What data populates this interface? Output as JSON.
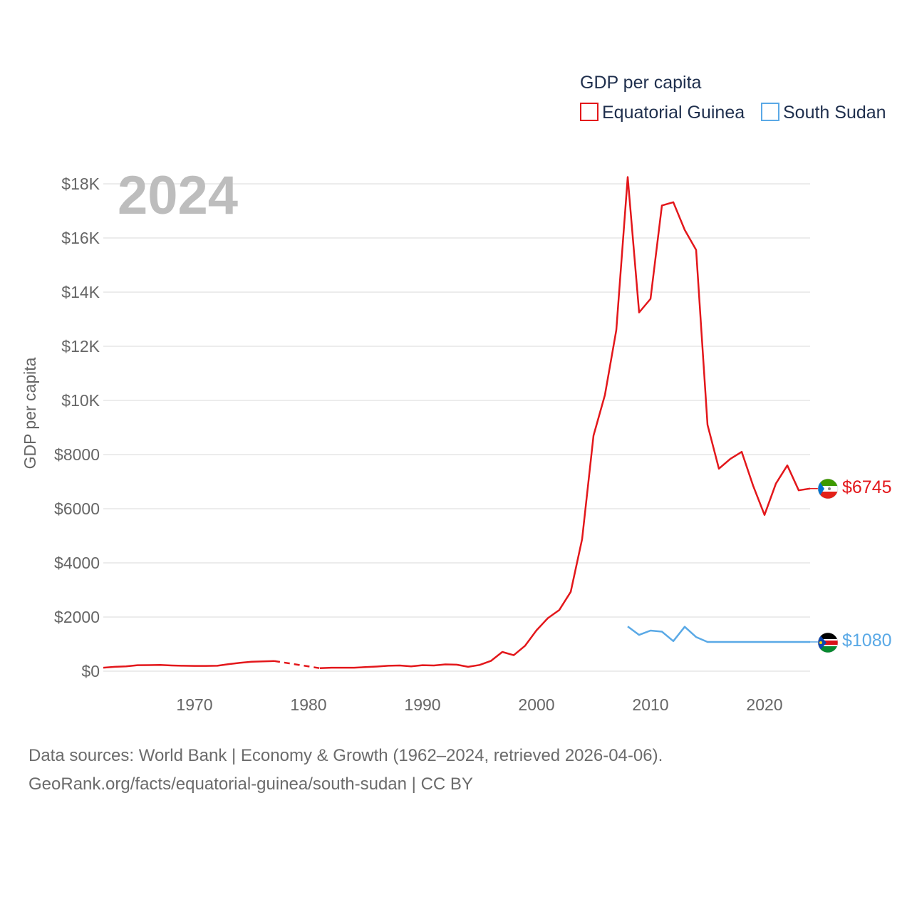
{
  "legend": {
    "title": "GDP per capita",
    "items": [
      {
        "name": "Equatorial Guinea",
        "color": "#e3171b"
      },
      {
        "name": "South Sudan",
        "color": "#5aa9e6"
      }
    ]
  },
  "year_label": "2024",
  "footer": {
    "line1": "Data sources: World Bank | Economy & Growth (1962–2024, retrieved 2026-04-06).",
    "line2": "GeoRank.org/facts/equatorial-guinea/south-sudan | CC BY"
  },
  "end_labels": {
    "equatorial_guinea": "$6745",
    "south_sudan": "$1080"
  },
  "flags": {
    "equatorial_guinea": "equatorial-guinea-flag-icon",
    "south_sudan": "south-sudan-flag-icon"
  },
  "chart_data": {
    "type": "line",
    "title": "GDP per capita",
    "xlabel": "",
    "ylabel": "GDP per capita",
    "xlim": [
      1962,
      2024
    ],
    "ylim": [
      0,
      18000
    ],
    "x_ticks": [
      1970,
      1980,
      1990,
      2000,
      2010,
      2020
    ],
    "x_tick_labels": [
      "1970",
      "1980",
      "1990",
      "2000",
      "2010",
      "2020"
    ],
    "y_ticks": [
      0,
      2000,
      4000,
      6000,
      8000,
      10000,
      12000,
      14000,
      16000,
      18000
    ],
    "y_tick_labels": [
      "$0",
      "$2000",
      "$4000",
      "$6000",
      "$8000",
      "$10K",
      "$12K",
      "$14K",
      "$16K",
      "$18K"
    ],
    "grid": true,
    "legend_position": "top-right",
    "series": [
      {
        "name": "Equatorial Guinea",
        "color": "#e3171b",
        "x": [
          1962,
          1963,
          1964,
          1965,
          1966,
          1967,
          1968,
          1969,
          1970,
          1971,
          1972,
          1973,
          1974,
          1975,
          1976,
          1977,
          1981,
          1982,
          1983,
          1984,
          1985,
          1986,
          1987,
          1988,
          1989,
          1990,
          1991,
          1992,
          1993,
          1994,
          1995,
          1996,
          1997,
          1998,
          1999,
          2000,
          2001,
          2002,
          2003,
          2004,
          2005,
          2006,
          2007,
          2008,
          2009,
          2010,
          2011,
          2012,
          2013,
          2014,
          2015,
          2016,
          2017,
          2018,
          2019,
          2020,
          2021,
          2022,
          2023,
          2024
        ],
        "y": [
          130,
          160,
          180,
          220,
          225,
          230,
          210,
          200,
          195,
          195,
          200,
          260,
          310,
          350,
          360,
          375,
          110,
          130,
          130,
          130,
          150,
          170,
          200,
          210,
          180,
          220,
          210,
          250,
          240,
          160,
          230,
          380,
          710,
          590,
          940,
          1510,
          1960,
          2260,
          2930,
          4880,
          8700,
          10200,
          12600,
          18250,
          13250,
          13750,
          17200,
          17320,
          16300,
          15560,
          9100,
          7480,
          7840,
          8100,
          6850,
          5770,
          6930,
          7600,
          6680,
          6745
        ],
        "gap_from": 1977,
        "gap_to": 1981
      },
      {
        "name": "South Sudan",
        "color": "#5aa9e6",
        "x": [
          2008,
          2009,
          2010,
          2011,
          2012,
          2013,
          2014,
          2015,
          2016,
          2017,
          2018,
          2019,
          2020,
          2021,
          2022,
          2023,
          2024
        ],
        "y": [
          1650,
          1340,
          1500,
          1460,
          1110,
          1640,
          1260,
          1080,
          1080,
          1080,
          1080,
          1080,
          1080,
          1080,
          1080,
          1080,
          1080
        ]
      }
    ]
  }
}
